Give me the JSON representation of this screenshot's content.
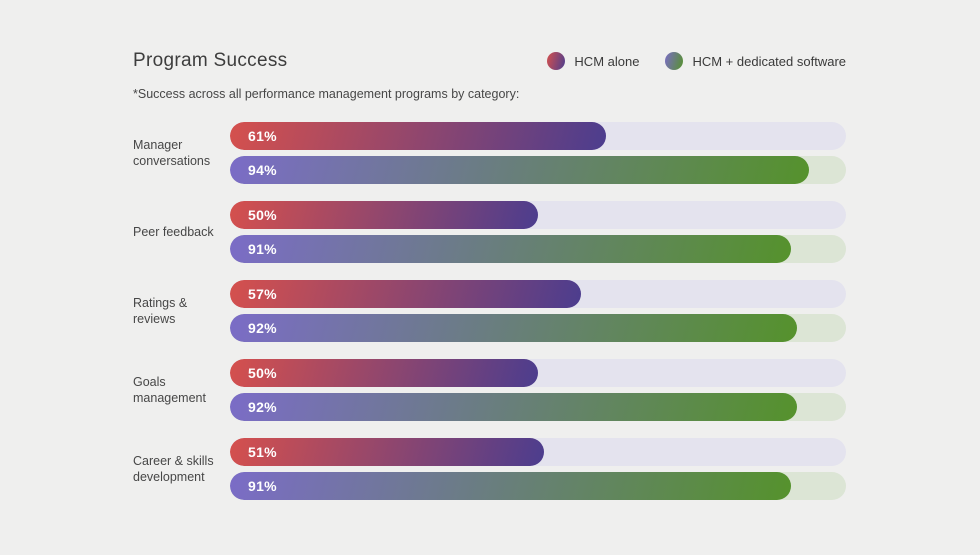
{
  "title": "Program Success",
  "subtitle": "*Success across all performance management programs by category:",
  "legend": [
    {
      "label": "HCM alone"
    },
    {
      "label": "HCM + dedicated software"
    }
  ],
  "colors": {
    "background": "#efefee",
    "series1_gradient_start": "#d5504d",
    "series1_gradient_end": "#4c3d8e",
    "series2_gradient_start": "#7b6cc7",
    "series2_gradient_end": "#55922c",
    "series1_track": "#e4e3ee",
    "series2_track": "#dce5d5",
    "value_text": "#ffffff"
  },
  "chart_data": {
    "type": "bar",
    "orientation": "horizontal",
    "title": "Program Success",
    "subtitle": "*Success across all performance management programs by category:",
    "categories": [
      "Manager conversations",
      "Peer feedback",
      "Ratings & reviews",
      "Goals management",
      "Career & skills development"
    ],
    "series": [
      {
        "name": "HCM alone",
        "values": [
          61,
          50,
          57,
          50,
          51
        ]
      },
      {
        "name": "HCM + dedicated software",
        "values": [
          94,
          91,
          92,
          92,
          91
        ]
      }
    ],
    "value_suffix": "%",
    "xlim": [
      0,
      100
    ],
    "grid": false,
    "legend_position": "top-right"
  }
}
